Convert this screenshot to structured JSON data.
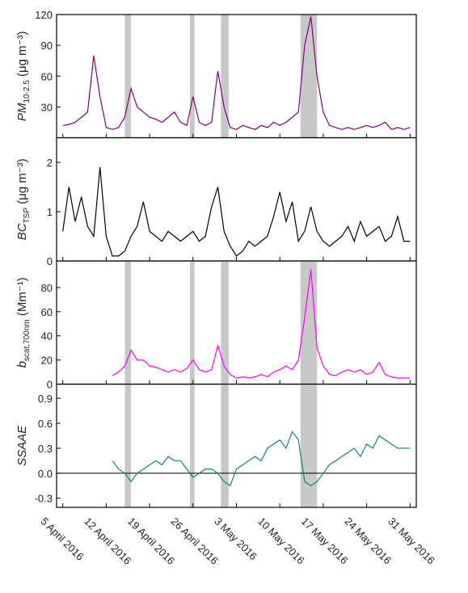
{
  "chart_data": {
    "type": "line",
    "x": [
      "2016-04-05",
      "2016-04-06",
      "2016-04-07",
      "2016-04-08",
      "2016-04-09",
      "2016-04-10",
      "2016-04-11",
      "2016-04-12",
      "2016-04-13",
      "2016-04-14",
      "2016-04-15",
      "2016-04-16",
      "2016-04-17",
      "2016-04-18",
      "2016-04-19",
      "2016-04-20",
      "2016-04-21",
      "2016-04-22",
      "2016-04-23",
      "2016-04-24",
      "2016-04-25",
      "2016-04-26",
      "2016-04-27",
      "2016-04-28",
      "2016-04-29",
      "2016-04-30",
      "2016-05-01",
      "2016-05-02",
      "2016-05-03",
      "2016-05-04",
      "2016-05-05",
      "2016-05-06",
      "2016-05-07",
      "2016-05-08",
      "2016-05-09",
      "2016-05-10",
      "2016-05-11",
      "2016-05-12",
      "2016-05-13",
      "2016-05-14",
      "2016-05-15",
      "2016-05-16",
      "2016-05-17",
      "2016-05-18",
      "2016-05-19",
      "2016-05-20",
      "2016-05-21",
      "2016-05-22",
      "2016-05-23",
      "2016-05-24",
      "2016-05-25",
      "2016-05-26",
      "2016-05-27",
      "2016-05-28",
      "2016-05-29",
      "2016-05-30",
      "2016-05-31"
    ],
    "xlim": [
      "2016-04-04",
      "2016-06-01"
    ],
    "xticks": [
      {
        "value": "2016-04-05",
        "label": "5 April 2016"
      },
      {
        "value": "2016-04-12",
        "label": "12 April 2016"
      },
      {
        "value": "2016-04-19",
        "label": "19 April 2016"
      },
      {
        "value": "2016-04-26",
        "label": "26 April 2016"
      },
      {
        "value": "2016-05-03",
        "label": "3 May 2016"
      },
      {
        "value": "2016-05-10",
        "label": "10 May 2016"
      },
      {
        "value": "2016-05-17",
        "label": "17 May 2016"
      },
      {
        "value": "2016-05-24",
        "label": "24 May 2016"
      },
      {
        "value": "2016-05-31",
        "label": "31 May 2016"
      }
    ],
    "shaded_spans": [
      [
        "2016-04-15",
        "2016-04-16"
      ],
      [
        "2016-04-25T12:00",
        "2016-04-26T06:00"
      ],
      [
        "2016-04-30T12:00",
        "2016-05-01T18:00"
      ],
      [
        "2016-05-13T08:00",
        "2016-05-16T00:00"
      ]
    ],
    "shade_color": "#c8c8c8",
    "panels": [
      {
        "ylabel": {
          "main": "PM",
          "sub": "10-2.5",
          "unit": " (μg m⁻³)"
        },
        "ylim": [
          0,
          120
        ],
        "yticks": [
          30,
          60,
          90,
          120
        ],
        "shaded": true,
        "series": [
          {
            "color": "#800080",
            "values": [
              12,
              13,
              15,
              20,
              25,
              80,
              40,
              10,
              8,
              10,
              20,
              48,
              30,
              25,
              20,
              18,
              15,
              20,
              25,
              15,
              12,
              40,
              15,
              12,
              15,
              65,
              30,
              10,
              8,
              12,
              10,
              8,
              12,
              10,
              15,
              12,
              15,
              20,
              25,
              90,
              118,
              60,
              25,
              12,
              10,
              8,
              10,
              8,
              10,
              12,
              10,
              12,
              15,
              8,
              10,
              8,
              10
            ]
          }
        ]
      },
      {
        "ylabel": {
          "main": "BC",
          "sub": "TSP",
          "unit": " (μg m⁻³)"
        },
        "ylim": [
          0,
          2.5
        ],
        "yticks": [
          0,
          1,
          2
        ],
        "shaded": false,
        "series": [
          {
            "color": "#000000",
            "values": [
              0.6,
              1.5,
              0.8,
              1.3,
              0.7,
              0.5,
              1.9,
              0.5,
              0.1,
              0.1,
              0.2,
              0.5,
              0.7,
              1.2,
              0.6,
              0.5,
              0.4,
              0.6,
              0.5,
              0.4,
              0.5,
              0.6,
              0.4,
              0.5,
              1.1,
              1.5,
              0.6,
              0.3,
              0.1,
              0.2,
              0.4,
              0.3,
              0.4,
              0.5,
              0.9,
              1.4,
              0.8,
              1.2,
              0.4,
              0.6,
              1.1,
              0.6,
              0.4,
              0.3,
              0.4,
              0.5,
              0.7,
              0.4,
              0.8,
              0.5,
              0.6,
              0.7,
              0.4,
              0.5,
              0.9,
              0.4,
              0.4
            ]
          }
        ]
      },
      {
        "ylabel": {
          "main": "b",
          "sub": "scat,700nm",
          "unit": " (Mm⁻¹)"
        },
        "ylim": [
          0,
          102
        ],
        "yticks": [
          0,
          20,
          40,
          60,
          80
        ],
        "shaded": true,
        "series": [
          {
            "color": "#ff00ff",
            "values": [
              null,
              null,
              null,
              null,
              null,
              null,
              null,
              null,
              7,
              10,
              15,
              28,
              20,
              20,
              15,
              14,
              12,
              10,
              12,
              10,
              13,
              20,
              12,
              10,
              12,
              32,
              15,
              8,
              5,
              6,
              5,
              6,
              8,
              6,
              10,
              12,
              15,
              12,
              20,
              55,
              95,
              30,
              15,
              8,
              7,
              10,
              12,
              10,
              12,
              8,
              10,
              18,
              8,
              6,
              5,
              5,
              5
            ]
          }
        ]
      },
      {
        "ylabel": {
          "main": "SSAAE",
          "sub": "",
          "unit": ""
        },
        "ylim": [
          -0.41,
          1.07
        ],
        "yticks": [
          -0.3,
          {
            "value": 0,
            "label": "0.0"
          },
          0.3,
          0.6,
          0.9
        ],
        "shaded": true,
        "reference_line": 0,
        "series": [
          {
            "color": "#128080",
            "values": [
              null,
              null,
              null,
              null,
              null,
              null,
              null,
              null,
              0.15,
              0.05,
              0.0,
              -0.1,
              0.0,
              0.05,
              0.1,
              0.15,
              0.1,
              0.2,
              0.15,
              0.15,
              0.05,
              -0.05,
              0.0,
              0.05,
              0.05,
              0.0,
              -0.1,
              -0.15,
              0.05,
              0.1,
              0.15,
              0.2,
              0.15,
              0.3,
              0.35,
              0.4,
              0.3,
              0.5,
              0.4,
              -0.1,
              -0.15,
              -0.1,
              0.0,
              0.1,
              0.15,
              0.2,
              0.25,
              0.3,
              0.2,
              0.35,
              0.3,
              0.45,
              0.4,
              0.35,
              0.3,
              0.3,
              0.3
            ]
          }
        ]
      }
    ]
  }
}
